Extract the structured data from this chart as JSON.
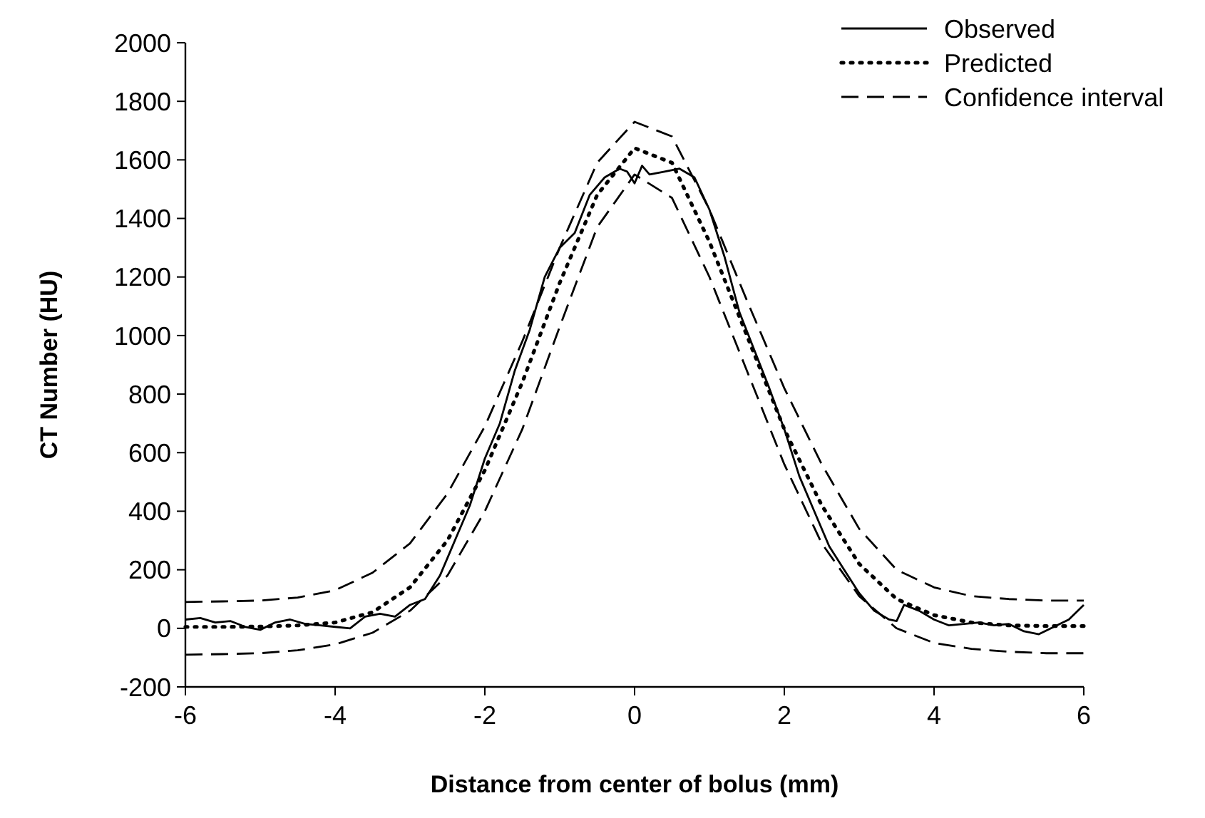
{
  "chart_data": {
    "type": "line",
    "xlabel": "Distance from center of bolus (mm)",
    "ylabel": "CT Number (HU)",
    "xlim": [
      -6,
      6
    ],
    "xticks": [
      -6,
      -4,
      -2,
      0,
      2,
      4,
      6
    ],
    "ylim": [
      -200,
      2000
    ],
    "yticks": [
      -200,
      0,
      200,
      400,
      600,
      800,
      1000,
      1200,
      1400,
      1600,
      1800,
      2000
    ],
    "grid": false,
    "legend": "top right",
    "series": [
      {
        "name": "Observed",
        "color": "#000000",
        "line_style": "solid",
        "x": [
          -6,
          -5.8,
          -5.6,
          -5.4,
          -5.2,
          -5,
          -4.8,
          -4.6,
          -4.4,
          -4.2,
          -4,
          -3.8,
          -3.6,
          -3.4,
          -3.2,
          -3,
          -2.8,
          -2.6,
          -2.4,
          -2.2,
          -2,
          -1.8,
          -1.6,
          -1.4,
          -1.2,
          -1,
          -0.8,
          -0.6,
          -0.4,
          -0.2,
          -0.1,
          0,
          0.1,
          0.2,
          0.4,
          0.6,
          0.8,
          1,
          1.2,
          1.4,
          1.6,
          1.8,
          2,
          2.2,
          2.4,
          2.6,
          2.8,
          3,
          3.2,
          3.4,
          3.5,
          3.6,
          3.8,
          4,
          4.2,
          4.4,
          4.6,
          4.8,
          5,
          5.2,
          5.4,
          5.6,
          5.8,
          6
        ],
        "values": [
          30,
          35,
          20,
          25,
          5,
          -5,
          20,
          30,
          15,
          10,
          5,
          0,
          40,
          50,
          40,
          80,
          100,
          180,
          300,
          420,
          580,
          700,
          880,
          1020,
          1200,
          1300,
          1350,
          1480,
          1540,
          1570,
          1560,
          1520,
          1580,
          1550,
          1560,
          1570,
          1540,
          1430,
          1270,
          1080,
          950,
          820,
          680,
          520,
          400,
          280,
          200,
          120,
          60,
          30,
          25,
          80,
          60,
          30,
          10,
          15,
          20,
          10,
          15,
          -10,
          -20,
          5,
          30,
          80
        ]
      },
      {
        "name": "Predicted",
        "color": "#000000",
        "line_style": "dotted",
        "x": [
          -6,
          -5.5,
          -5,
          -4.5,
          -4,
          -3.5,
          -3,
          -2.5,
          -2,
          -1.5,
          -1,
          -0.5,
          0,
          0.5,
          1,
          1.5,
          2,
          2.5,
          3,
          3.5,
          4,
          4.5,
          5,
          5.5,
          6
        ],
        "values": [
          5,
          5,
          6,
          10,
          20,
          55,
          140,
          300,
          540,
          840,
          1180,
          1480,
          1640,
          1590,
          1320,
          1000,
          680,
          420,
          220,
          100,
          45,
          20,
          10,
          8,
          8
        ]
      },
      {
        "name": "Confidence interval",
        "color": "#000000",
        "line_style": "dashed",
        "x": [
          -6,
          -5.5,
          -5,
          -4.5,
          -4,
          -3.5,
          -3,
          -2.5,
          -2,
          -1.5,
          -1,
          -0.5,
          0,
          0.5,
          1,
          1.5,
          2,
          2.5,
          3,
          3.5,
          4,
          4.5,
          5,
          5.5,
          6
        ],
        "values": [
          90,
          92,
          95,
          105,
          130,
          190,
          290,
          460,
          690,
          980,
          1300,
          1590,
          1730,
          1680,
          1430,
          1120,
          820,
          560,
          340,
          200,
          140,
          110,
          100,
          95,
          95
        ]
      },
      {
        "color": "#000000",
        "line_style": "dashed",
        "x": [
          -6,
          -5.5,
          -5,
          -4.5,
          -4,
          -3.5,
          -3,
          -2.5,
          -2,
          -1.5,
          -1,
          -0.5,
          0,
          0.5,
          1,
          1.5,
          2,
          2.5,
          3,
          3.5,
          4,
          4.5,
          5,
          5.5,
          6
        ],
        "values": [
          -90,
          -88,
          -85,
          -75,
          -55,
          -15,
          60,
          180,
          400,
          680,
          1030,
          1370,
          1550,
          1470,
          1200,
          880,
          560,
          290,
          110,
          0,
          -50,
          -70,
          -80,
          -85,
          -85
        ]
      }
    ]
  }
}
